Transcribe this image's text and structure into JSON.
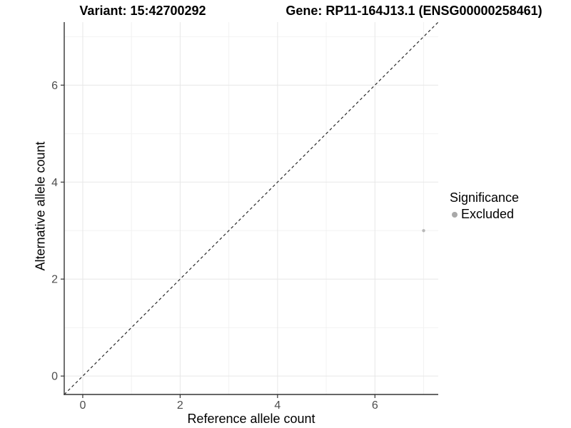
{
  "titles": {
    "variant": "Variant: 15:42700292",
    "gene": "Gene: RP11-164J13.1 (ENSG00000258461)"
  },
  "chart_data": {
    "type": "scatter",
    "xlabel": "Reference allele count",
    "ylabel": "Alternative allele count",
    "xlim": [
      -0.38,
      7.3
    ],
    "ylim": [
      -0.38,
      7.3
    ],
    "xticks": [
      0,
      2,
      4,
      6
    ],
    "yticks": [
      0,
      2,
      4,
      6
    ],
    "grid": {
      "on": true,
      "major": [
        0,
        2,
        4,
        6
      ],
      "minor": [
        1,
        3,
        5,
        7
      ]
    },
    "identity_line": {
      "style": "dashed",
      "slope": 1,
      "intercept": 0
    },
    "series": [
      {
        "name": "Excluded",
        "points": [
          [
            7,
            3
          ]
        ],
        "color": "#b8b8b8"
      }
    ],
    "legend": {
      "title": "Significance",
      "position": "right",
      "items": [
        {
          "label": "Excluded",
          "color": "#a9a9a9"
        }
      ]
    }
  },
  "colors": {
    "background": "#ffffff",
    "axis_line": "#333333",
    "tick_label": "#4d4d4d",
    "grid_major": "#e7e7e7",
    "grid_minor": "#f2f2f2",
    "identity_line": "#2a2a2a",
    "title_text": "#000000"
  }
}
